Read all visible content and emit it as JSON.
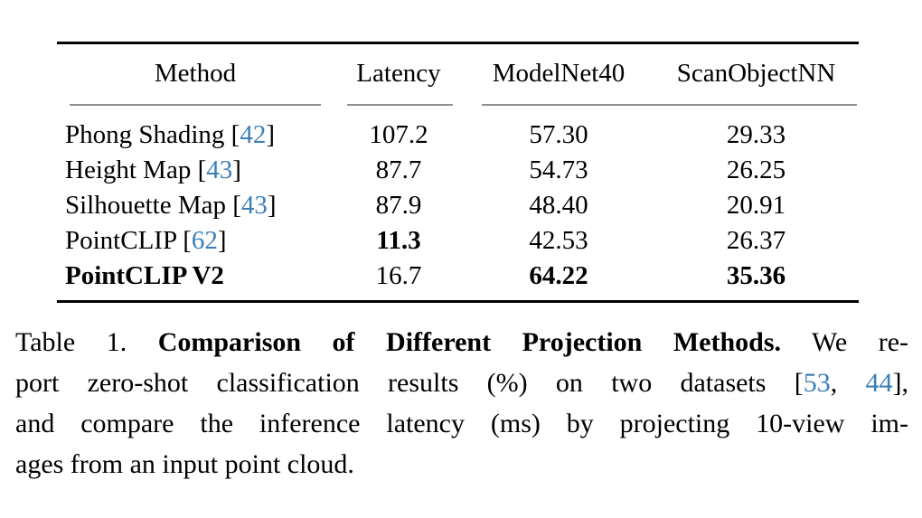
{
  "colors": {
    "citation_blue": "#3c7fb8",
    "rule_black": "#000000",
    "subrule_gray": "#8f8f8f",
    "background": "#ffffff"
  },
  "table": {
    "headers": [
      "Method",
      "Latency",
      "ModelNet40",
      "ScanObjectNN"
    ],
    "rows": [
      {
        "method": {
          "segments": [
            {
              "t": "Phong Shading [",
              "s": "regular"
            },
            {
              "t": "42",
              "s": "cite"
            },
            {
              "t": "]",
              "s": "regular"
            }
          ]
        },
        "cells": [
          {
            "text": "107.2",
            "bold": false
          },
          {
            "text": "57.30",
            "bold": false
          },
          {
            "text": "29.33",
            "bold": false
          }
        ]
      },
      {
        "method": {
          "segments": [
            {
              "t": "Height Map [",
              "s": "regular"
            },
            {
              "t": "43",
              "s": "cite"
            },
            {
              "t": "]",
              "s": "regular"
            }
          ]
        },
        "cells": [
          {
            "text": "87.7",
            "bold": false
          },
          {
            "text": "54.73",
            "bold": false
          },
          {
            "text": "26.25",
            "bold": false
          }
        ]
      },
      {
        "method": {
          "segments": [
            {
              "t": "Silhouette Map [",
              "s": "regular"
            },
            {
              "t": "43",
              "s": "cite"
            },
            {
              "t": "]",
              "s": "regular"
            }
          ]
        },
        "cells": [
          {
            "text": "87.9",
            "bold": false
          },
          {
            "text": "48.40",
            "bold": false
          },
          {
            "text": "20.91",
            "bold": false
          }
        ]
      },
      {
        "method": {
          "segments": [
            {
              "t": "PointCLIP [",
              "s": "regular"
            },
            {
              "t": "62",
              "s": "cite"
            },
            {
              "t": "]",
              "s": "regular"
            }
          ]
        },
        "cells": [
          {
            "text": "11.3",
            "bold": true
          },
          {
            "text": "42.53",
            "bold": false
          },
          {
            "text": "26.37",
            "bold": false
          }
        ]
      },
      {
        "method": {
          "segments": [
            {
              "t": "PointCLIP V2",
              "s": "bold"
            }
          ]
        },
        "cells": [
          {
            "text": "16.7",
            "bold": false
          },
          {
            "text": "64.22",
            "bold": true
          },
          {
            "text": "35.36",
            "bold": true
          }
        ]
      }
    ]
  },
  "caption": {
    "lines": [
      [
        {
          "t": "Table 1. ",
          "s": "regular"
        },
        {
          "t": "Comparison of Different Projection Methods.",
          "s": "bold"
        },
        {
          "t": " We re-",
          "s": "regular"
        }
      ],
      [
        {
          "t": "port zero-shot classification results (%) on two datasets [",
          "s": "regular"
        },
        {
          "t": "53",
          "s": "cite"
        },
        {
          "t": ", ",
          "s": "regular"
        },
        {
          "t": "44",
          "s": "cite"
        },
        {
          "t": "],",
          "s": "regular"
        }
      ],
      [
        {
          "t": "and compare the inference latency (ms) by projecting 10-view im-",
          "s": "regular"
        }
      ],
      [
        {
          "t": "ages from an input point cloud.",
          "s": "regular"
        }
      ]
    ]
  }
}
